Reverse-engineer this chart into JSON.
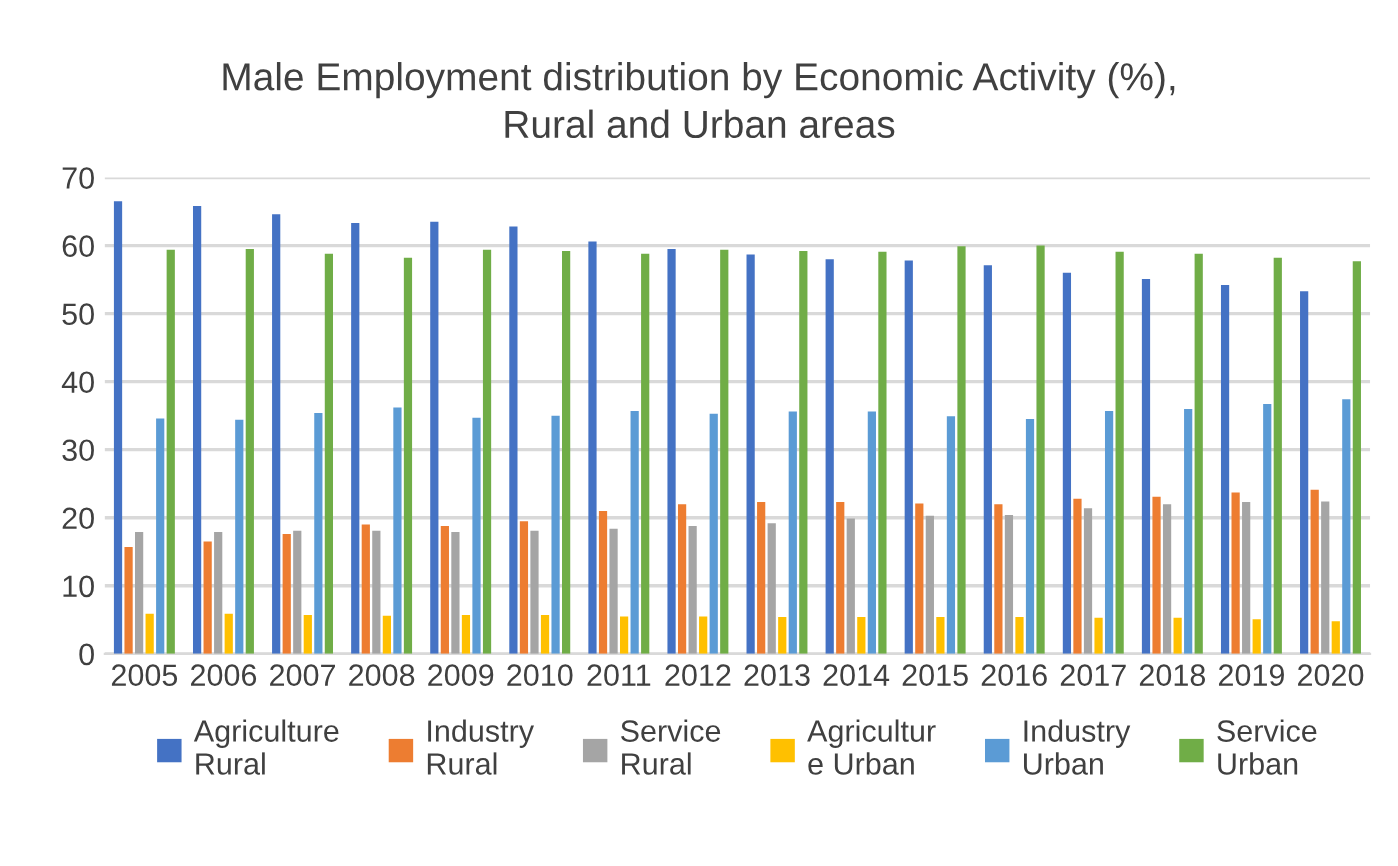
{
  "chart_data": {
    "type": "bar",
    "title": "Male Employment distribution by Economic Activity (%),\nRural and Urban areas",
    "categories": [
      "2005",
      "2006",
      "2007",
      "2008",
      "2009",
      "2010",
      "2011",
      "2012",
      "2013",
      "2014",
      "2015",
      "2016",
      "2017",
      "2018",
      "2019",
      "2020"
    ],
    "series": [
      {
        "name": "Agriculture\nRural",
        "color": "#4472c4",
        "values": [
          66.5,
          65.8,
          64.6,
          63.3,
          63.5,
          62.8,
          60.6,
          59.5,
          58.7,
          58.0,
          57.8,
          57.1,
          56.0,
          55.1,
          54.2,
          53.3
        ]
      },
      {
        "name": "Industry\nRural",
        "color": "#ed7d31",
        "values": [
          15.7,
          16.5,
          17.6,
          19.0,
          18.8,
          19.5,
          21.0,
          22.0,
          22.3,
          22.3,
          22.1,
          22.0,
          22.8,
          23.1,
          23.7,
          24.1
        ]
      },
      {
        "name": "Service\nRural",
        "color": "#a5a5a5",
        "values": [
          17.9,
          17.9,
          18.1,
          18.1,
          17.9,
          18.1,
          18.4,
          18.8,
          19.2,
          19.9,
          20.3,
          20.4,
          21.4,
          22.0,
          22.3,
          22.4
        ]
      },
      {
        "name": "Agricultur\ne Urban",
        "color": "#ffc000",
        "values": [
          5.9,
          5.9,
          5.7,
          5.6,
          5.7,
          5.7,
          5.5,
          5.5,
          5.4,
          5.4,
          5.4,
          5.4,
          5.3,
          5.3,
          5.1,
          4.8
        ]
      },
      {
        "name": "Industry\nUrban",
        "color": "#5b9bd5",
        "values": [
          34.6,
          34.4,
          35.4,
          36.2,
          34.7,
          35.0,
          35.7,
          35.3,
          35.6,
          35.6,
          34.9,
          34.5,
          35.7,
          36.0,
          36.7,
          37.4
        ]
      },
      {
        "name": "Service\nUrban",
        "color": "#70ad47",
        "values": [
          59.4,
          59.5,
          58.8,
          58.2,
          59.4,
          59.2,
          58.8,
          59.4,
          59.2,
          59.1,
          59.9,
          60.0,
          59.1,
          58.8,
          58.2,
          57.7
        ]
      }
    ],
    "ylim": [
      0,
      70
    ],
    "yticks": [
      0,
      10,
      20,
      30,
      40,
      50,
      60,
      70
    ],
    "grid": "y",
    "legend": "bottom"
  }
}
